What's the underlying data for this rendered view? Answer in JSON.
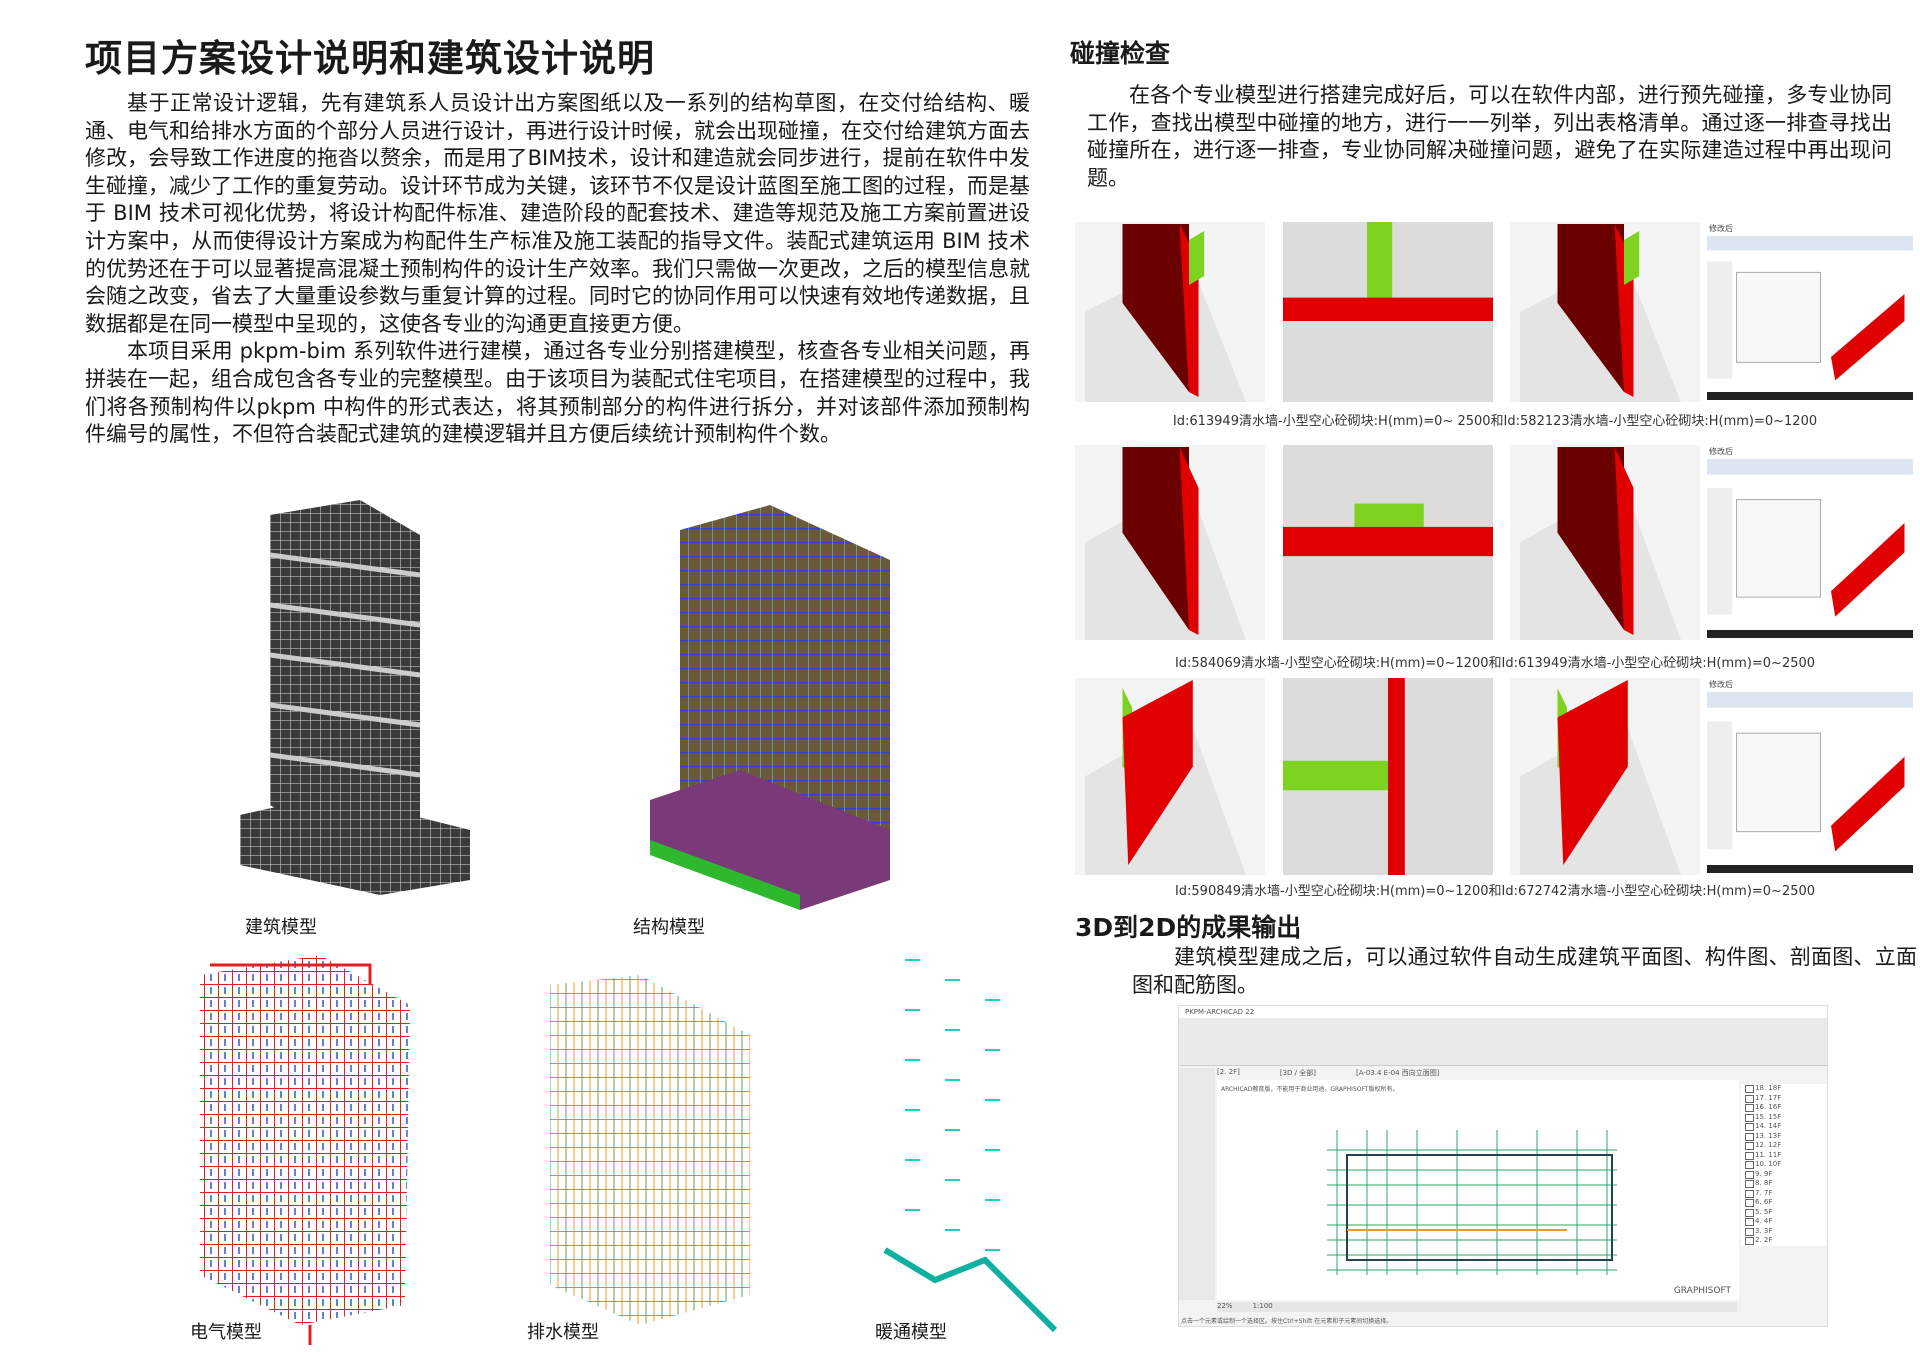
{
  "left": {
    "title": "项目方案设计说明和建筑设计说明",
    "paragraphs": [
      "基于正常设计逻辑，先有建筑系人员设计出方案图纸以及一系列的结构草图，在交付给结构、暖通、电气和给排水方面的个部分人员进行设计，再进行设计时候，就会出现碰撞，在交付给建筑方面去修改，会导致工作进度的拖沓以赘余，而是用了BIM技术，设计和建造就会同步进行，提前在软件中发生碰撞，减少了工作的重复劳动。设计环节成为关键，该环节不仅是设计蓝图至施工图的过程，而是基于 BIM 技术可视化优势，将设计构配件标准、建造阶段的配套技术、建造等规范及施工方案前置进设计方案中，从而使得设计方案成为构配件生产标准及施工装配的指导文件。装配式建筑运用 BIM 技术的优势还在于可以显著提高混凝土预制构件的设计生产效率。我们只需做一次更改，之后的模型信息就会随之改变，省去了大量重设参数与重复计算的过程。同时它的协同作用可以快速有效地传递数据，且数据都是在同一模型中呈现的，这使各专业的沟通更直接更方便。",
      "本项目采用 pkpm-bim 系列软件进行建模，通过各专业分别搭建模型，核查各专业相关问题，再拼装在一起，组合成包含各专业的完整模型。由于该项目为装配式住宅项目，在搭建模型的过程中，我们将各预制构件以pkpm 中构件的形式表达，将其预制部分的构件进行拆分，并对该部件添加预制构件编号的属性，不但符合装配式建筑的建模逻辑并且方便后续统计预制构件个数。"
    ],
    "models": {
      "architecture": "建筑模型",
      "structure": "结构模型",
      "electrical": "电气模型",
      "drainage": "排水模型",
      "hvac": "暖通模型"
    }
  },
  "collision": {
    "title": "碰撞检查",
    "paragraph": "在各个专业模型进行搭建完成好后，可以在软件内部，进行预先碰撞，多专业协同工作，查找出模型中碰撞的地方，进行一一列举，列出表格清单。通过逐一排查寻找出碰撞所在，进行逐一排查，专业协同解决碰撞问题，避免了在实际建造过程中再出现问题。",
    "captions": [
      "Id:613949清水墙-小型空心砼砌块:H(mm)=0~ 2500和Id:582123清水墙-小型空心砼砌块:H(mm)=0~1200",
      "Id:584069清水墙-小型空心砼砌块:H(mm)=0~1200和Id:613949清水墙-小型空心砼砌块:H(mm)=0~2500",
      "Id:590849清水墙-小型空心砼砌块:H(mm)=0~1200和Id:672742清水墙-小型空心砼砌块:H(mm)=0~2500"
    ],
    "screenshot_label": "修改后",
    "colors": {
      "red": "#e00000",
      "dark_red": "#6b0000",
      "green": "#7ed321",
      "gray": "#dcdcdc"
    }
  },
  "output": {
    "title": "3D到2D的成果输出",
    "paragraph": "建筑模型建成之后，可以通过软件自动生成建筑平面图、构件图、剖面图、立面图和配筋图。",
    "window": {
      "title": "PKPM-ARCHICAD 22",
      "tabs": [
        "[2. 2F]",
        "[3D / 全部]",
        "[A-03.4 E-04 西向立面图]"
      ],
      "notice": "ARCHICAD教育版，不能用于商业用途。GRAPHISOFT版权所有。",
      "brand": "GRAPHISOFT",
      "zoom": "22%",
      "scale": "1:100",
      "floors": [
        "18. 18F",
        "17. 17F",
        "16. 16F",
        "15. 15F",
        "14. 14F",
        "13. 13F",
        "12. 12F",
        "11. 11F",
        "10. 10F",
        "9. 9F",
        "8. 8F",
        "7. 7F",
        "6. 6F",
        "5. 5F",
        "4. 4F",
        "3. 3F",
        "2. 2F"
      ],
      "status": "点击一个元素或绘制一个选择区。按住Ctrl+Shift 在元素和子元素间切换选择。"
    }
  }
}
